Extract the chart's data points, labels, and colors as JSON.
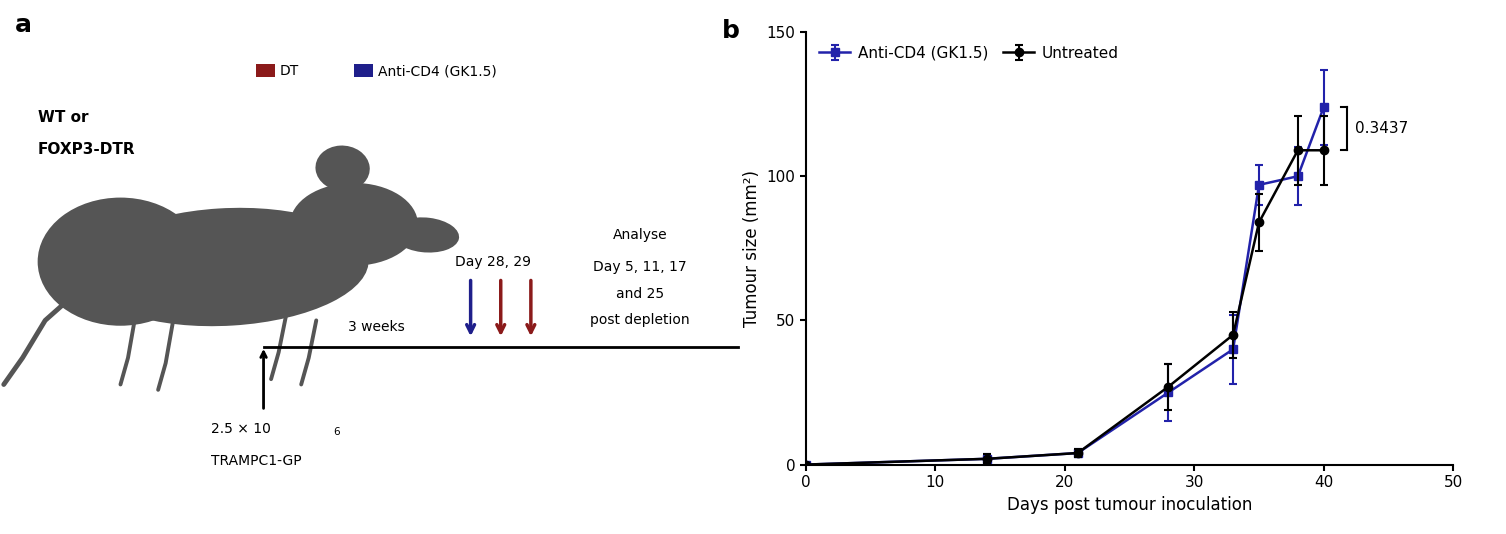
{
  "panel_b": {
    "untreated": {
      "x": [
        0,
        14,
        21,
        28,
        33,
        35,
        38,
        40
      ],
      "y": [
        0,
        2,
        4,
        27,
        45,
        84,
        109,
        109
      ],
      "yerr": [
        0.5,
        1.5,
        1.5,
        8,
        8,
        10,
        12,
        12
      ],
      "color": "#000000",
      "marker": "o",
      "label": "Untreated"
    },
    "anti_cd4": {
      "x": [
        0,
        14,
        21,
        28,
        33,
        35,
        38,
        40
      ],
      "y": [
        0,
        2,
        4,
        25,
        40,
        97,
        100,
        124
      ],
      "yerr": [
        0.5,
        1.5,
        1.5,
        10,
        12,
        7,
        10,
        13
      ],
      "color": "#2222aa",
      "marker": "s",
      "label": "Anti-CD4 (GK1.5)"
    },
    "xlabel": "Days post tumour inoculation",
    "ylabel": "Tumour size (mm²)",
    "ylim": [
      0,
      150
    ],
    "xlim": [
      0,
      50
    ],
    "xticks": [
      0,
      10,
      20,
      30,
      40,
      50
    ],
    "yticks": [
      0,
      50,
      100,
      150
    ],
    "pvalue": "0.3437",
    "pvalue_y1": 109,
    "pvalue_y2": 124
  },
  "panel_a": {
    "mouse_color": "#555555",
    "dt_color": "#8B1A1A",
    "anti_cd4_color": "#1F1F8B",
    "text_color": "#000000"
  }
}
